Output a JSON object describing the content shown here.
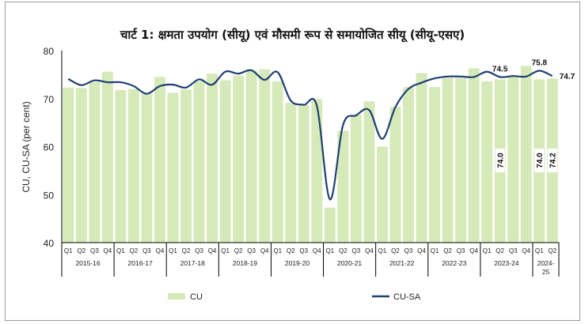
{
  "chart_data": {
    "type": "bar",
    "title": "चार्ट 1: क्षमता उपयोग (सीयू) एवं मौसमी रूप से समायोजित सीयू (सीयू-एसए)",
    "ylabel": "CU, CU-SA (per cent)",
    "xlabel": "",
    "ylim": [
      40,
      80
    ],
    "yticks": [
      "40",
      "50",
      "60",
      "70",
      "80"
    ],
    "quarters": [
      "Q1",
      "Q2",
      "Q3",
      "Q4"
    ],
    "years": [
      "2015-16",
      "2016-17",
      "2017-18",
      "2018-19",
      "2019-20",
      "2020-21",
      "2021-22",
      "2022-23",
      "2023-24",
      "2024-25"
    ],
    "legend_position": "bottom",
    "series": [
      {
        "name": "CU",
        "type": "bar",
        "color": "#d5eab8",
        "values": [
          72.3,
          72.2,
          73.4,
          75.6,
          71.8,
          72.0,
          70.9,
          74.5,
          71.2,
          71.9,
          73.6,
          75.2,
          73.8,
          74.8,
          75.9,
          76.1,
          73.6,
          69.1,
          68.6,
          69.9,
          47.3,
          63.3,
          66.6,
          69.4,
          60.0,
          68.3,
          72.4,
          75.3,
          72.4,
          74.3,
          74.3,
          76.3,
          73.6,
          74.0,
          74.6,
          76.8,
          74.0,
          74.2
        ]
      },
      {
        "name": "CU-SA",
        "type": "line",
        "color": "#1f3f73",
        "values": [
          74.1,
          72.8,
          73.8,
          73.4,
          73.4,
          72.6,
          71.0,
          72.6,
          72.9,
          72.3,
          74.0,
          72.9,
          75.6,
          75.2,
          75.9,
          73.9,
          75.5,
          69.6,
          68.7,
          68.5,
          49.0,
          64.5,
          66.5,
          67.6,
          61.6,
          68.2,
          72.0,
          73.3,
          74.2,
          74.6,
          74.6,
          74.5,
          75.6,
          74.5,
          74.7,
          74.6,
          75.8,
          74.7
        ]
      }
    ],
    "annotations": [
      {
        "series": "CU",
        "index": 33,
        "text": "74.0"
      },
      {
        "series": "CU",
        "index": 36,
        "text": "74.0"
      },
      {
        "series": "CU",
        "index": 37,
        "text": "74.2"
      },
      {
        "series": "CU-SA",
        "index": 33,
        "text": "74.5"
      },
      {
        "series": "CU-SA",
        "index": 36,
        "text": "75.8"
      },
      {
        "series": "CU-SA",
        "index": 37,
        "text": "74.7"
      }
    ]
  }
}
